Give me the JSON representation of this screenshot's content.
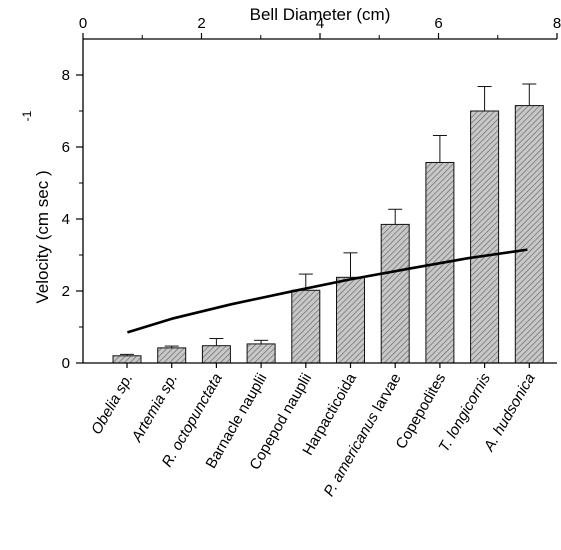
{
  "chart_data": {
    "type": "bar",
    "categories": [
      "Obelia sp.",
      "Artemia sp.",
      "R. octopunctata",
      "Barnacle nauplii",
      "Copepod nauplii",
      "Harpacticoida",
      "P. americanus larvae",
      "Copepodites",
      "T. longicornis",
      "A. hudsonica"
    ],
    "category_style": [
      "italic",
      "italic",
      "italic",
      "normal",
      "normal",
      "normal",
      "mixed",
      "normal",
      "italic",
      "italic"
    ],
    "values": [
      0.2,
      0.42,
      0.48,
      0.53,
      2.02,
      2.38,
      3.85,
      5.57,
      7.0,
      7.15
    ],
    "errors": [
      0.04,
      0.05,
      0.2,
      0.1,
      0.45,
      0.68,
      0.42,
      0.75,
      0.68,
      0.6
    ],
    "ylabel": "Velocity (cm sec",
    "ylabel_superscript": "-1",
    "ylabel_close": ")",
    "ylim": [
      0,
      9
    ],
    "yticks": [
      0,
      2,
      4,
      6,
      8
    ],
    "x2label": "Bell Diameter (cm)",
    "x2lim": [
      0,
      8
    ],
    "x2ticks": [
      0,
      2,
      4,
      6,
      8
    ],
    "curve": {
      "x": [
        0.75,
        1.5,
        2.5,
        3.5,
        4.5,
        5.5,
        6.5,
        7.5
      ],
      "y": [
        0.85,
        1.23,
        1.63,
        1.98,
        2.32,
        2.62,
        2.91,
        3.15
      ]
    },
    "bar_fill": "#bdbdbd",
    "grid": false,
    "legend": "none"
  }
}
